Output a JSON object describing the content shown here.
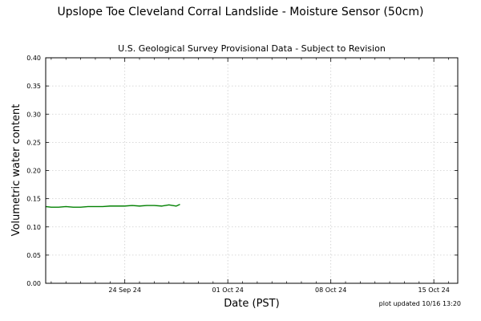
{
  "chart_data": {
    "type": "line",
    "title": "Upslope Toe Cleveland Corral Landslide - Moisture Sensor (50cm)",
    "subtitle": "U.S. Geological Survey Provisional Data - Subject to Revision",
    "xlabel": "Date (PST)",
    "ylabel": "Volumetric water content",
    "footer": "plot updated 10/16 13:20",
    "x_ticks": [
      "24 Sep 24",
      "01 Oct 24",
      "08 Oct 24",
      "15 Oct 24"
    ],
    "y_ticks": [
      "0.00",
      "0.05",
      "0.10",
      "0.15",
      "0.20",
      "0.25",
      "0.30",
      "0.35",
      "0.40"
    ],
    "xlim": [
      "2024-09-18T15:00",
      "2024-10-16T15:00"
    ],
    "ylim": [
      0.0,
      0.4
    ],
    "grid": true,
    "series": [
      {
        "color": "#008000",
        "x": [
          "2024-09-18T15:00",
          "2024-09-19T00:00",
          "2024-09-19T12:00",
          "2024-09-20T00:00",
          "2024-09-20T12:00",
          "2024-09-21T00:00",
          "2024-09-21T12:00",
          "2024-09-22T00:00",
          "2024-09-22T12:00",
          "2024-09-23T00:00",
          "2024-09-23T12:00",
          "2024-09-24T00:00",
          "2024-09-24T12:00",
          "2024-09-25T00:00",
          "2024-09-25T12:00",
          "2024-09-26T00:00",
          "2024-09-26T12:00",
          "2024-09-27T00:00",
          "2024-09-27T12:00",
          "2024-09-27T18:00"
        ],
        "y": [
          0.136,
          0.135,
          0.135,
          0.136,
          0.135,
          0.135,
          0.136,
          0.136,
          0.136,
          0.137,
          0.137,
          0.137,
          0.138,
          0.137,
          0.138,
          0.138,
          0.137,
          0.139,
          0.137,
          0.14
        ]
      }
    ]
  },
  "colors": {
    "background": "#ffffff",
    "grid": "#cccccc",
    "axes": "#000000",
    "series": "#008000"
  }
}
